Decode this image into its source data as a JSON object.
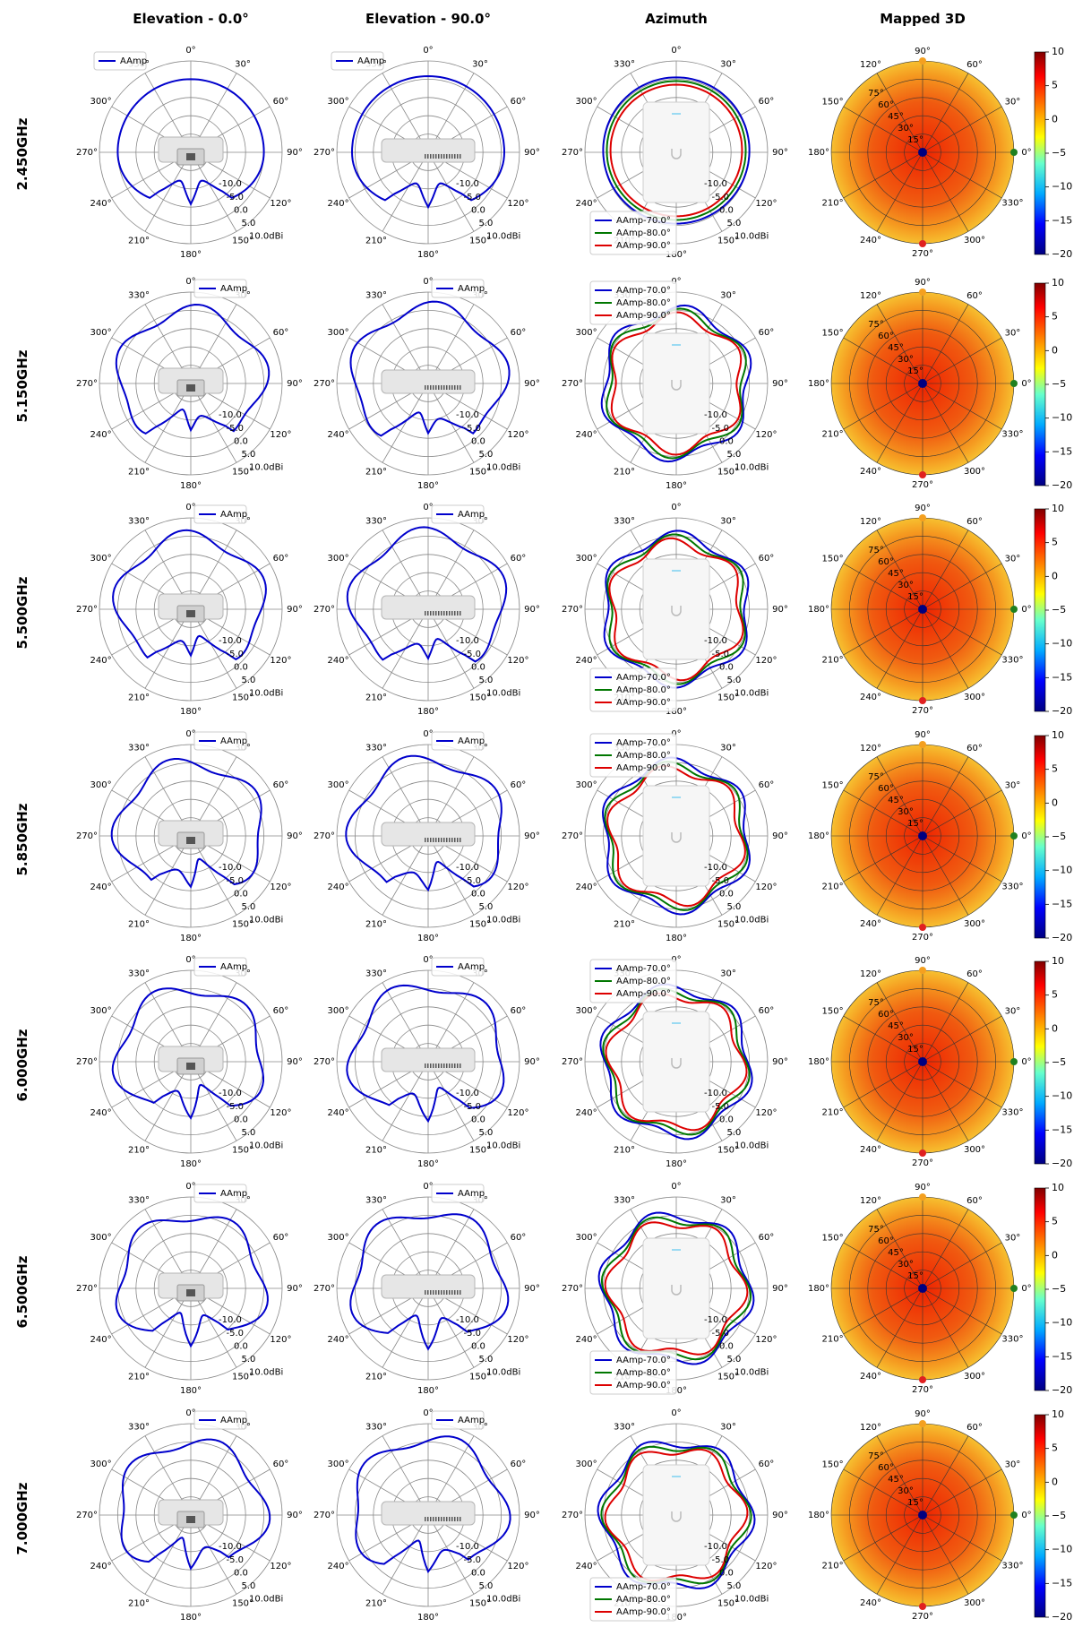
{
  "columns": [
    "Elevation - 0.0°",
    "Elevation - 90.0°",
    "Azimuth",
    "Mapped 3D"
  ],
  "rows": [
    "2.450GHz",
    "5.150GHz",
    "5.500GHz",
    "5.850GHz",
    "6.000GHz",
    "6.500GHz",
    "7.000GHz"
  ],
  "legends": {
    "elevation": [
      "AAmp"
    ],
    "azimuth": [
      "AAmp-70.0°",
      "AAmp-80.0°",
      "AAmp-90.0°"
    ]
  },
  "colors": {
    "aamp": "#0000cc",
    "az70": "#0000cc",
    "az80": "#007700",
    "az90": "#dd0000",
    "grid": "#888888",
    "marker_top": "#f4a020",
    "marker_right": "#208020",
    "marker_bottom": "#e02020",
    "marker_center": "#000080"
  },
  "icons": {
    "elevation_0": "ap-front-device-icon",
    "elevation_90": "ap-side-device-icon",
    "azimuth": "ap-top-device-icon"
  },
  "polar_labels": {
    "elevation_angles": [
      "0°",
      "330°",
      "300°",
      "270°",
      "240°",
      "210°",
      "180°",
      "150°",
      "120°",
      "90°",
      "60°",
      "30°"
    ],
    "azimuth_angles": [
      "90°",
      "60°",
      "30°",
      "0°",
      "330°",
      "300°",
      "270°",
      "240°",
      "210°",
      "180°",
      "150°",
      "120°"
    ],
    "radial_ticks": [
      "-10.0",
      "-5.0",
      "0.0",
      "5.0",
      "10.0dBi"
    ],
    "mapped_ticks": [
      "15°",
      "30°",
      "45°",
      "60°",
      "75°"
    ]
  },
  "colorbar": {
    "ticks": [
      "10",
      "5",
      "0",
      "−5",
      "−10",
      "−15",
      "−20"
    ],
    "range": [
      -20,
      10
    ]
  },
  "chart_data": [
    {
      "type": "polar",
      "frequency": "2.450GHz",
      "view": "Elevation - 0.0°",
      "rlim": [
        -20,
        10
      ],
      "series": [
        {
          "name": "AAmp",
          "angles_deg": [
            0,
            30,
            60,
            90,
            120,
            150,
            165,
            180,
            195,
            210,
            240,
            270,
            300,
            330
          ],
          "values_dbi": [
            4,
            4,
            3,
            2,
            -4,
            -10,
            -6,
            -14,
            -6,
            -10,
            -4,
            2,
            3,
            4
          ]
        }
      ]
    },
    {
      "type": "polar",
      "frequency": "2.450GHz",
      "view": "Elevation - 90.0°",
      "rlim": [
        -20,
        10
      ],
      "series": [
        {
          "name": "AAmp",
          "angles_deg": [
            0,
            30,
            60,
            90,
            120,
            150,
            165,
            180,
            195,
            210,
            240,
            270,
            300,
            330
          ],
          "values_dbi": [
            5,
            6,
            6,
            4,
            -4,
            -8,
            -5,
            -12,
            -5,
            -8,
            -4,
            4,
            6,
            6
          ]
        }
      ]
    },
    {
      "type": "polar",
      "frequency": "2.450GHz",
      "view": "Azimuth",
      "rlim": [
        -20,
        10
      ],
      "series": [
        {
          "name": "AAmp-70.0°",
          "angles_deg": [
            0,
            90,
            180,
            270
          ],
          "values_dbi": [
            4,
            4,
            4,
            4
          ]
        },
        {
          "name": "AAmp-80.0°",
          "angles_deg": [
            0,
            90,
            180,
            270
          ],
          "values_dbi": [
            3,
            3,
            3,
            3
          ]
        },
        {
          "name": "AAmp-90.0°",
          "angles_deg": [
            0,
            90,
            180,
            270
          ],
          "values_dbi": [
            2,
            2,
            2,
            2
          ]
        }
      ]
    },
    {
      "type": "polar",
      "frequency": "5.150GHz",
      "view": "Elevation - 0.0°",
      "rlim": [
        -20,
        10
      ],
      "series": [
        {
          "name": "AAmp",
          "angles_deg": [
            0,
            90,
            180,
            270
          ],
          "values_dbi": [
            4,
            0,
            -15,
            0
          ]
        }
      ]
    },
    {
      "type": "polar",
      "frequency": "5.150GHz",
      "view": "Elevation - 90.0°",
      "rlim": [
        -20,
        10
      ],
      "series": [
        {
          "name": "AAmp",
          "angles_deg": [
            0,
            90,
            180,
            270
          ],
          "values_dbi": [
            4,
            1,
            -15,
            1
          ]
        }
      ]
    },
    {
      "type": "polar",
      "frequency": "5.150GHz",
      "view": "Azimuth",
      "rlim": [
        -20,
        10
      ],
      "series": [
        {
          "name": "AAmp-70.0°",
          "angles_deg": [
            0,
            90,
            180,
            270
          ],
          "values_dbi": [
            2,
            1,
            2,
            1
          ]
        },
        {
          "name": "AAmp-80.0°",
          "angles_deg": [
            0,
            90,
            180,
            270
          ],
          "values_dbi": [
            1,
            0,
            1,
            0
          ]
        },
        {
          "name": "AAmp-90.0°",
          "angles_deg": [
            0,
            90,
            180,
            270
          ],
          "values_dbi": [
            0,
            -1,
            0,
            -1
          ]
        }
      ]
    },
    {
      "type": "polar",
      "frequency": "5.500GHz",
      "view": "Elevation - 0.0°",
      "rlim": [
        -20,
        10
      ],
      "series": [
        {
          "name": "AAmp",
          "angles_deg": [
            0,
            90,
            180,
            270
          ],
          "values_dbi": [
            4,
            0,
            -15,
            0
          ]
        }
      ]
    },
    {
      "type": "polar",
      "frequency": "5.500GHz",
      "view": "Elevation - 90.0°",
      "rlim": [
        -20,
        10
      ],
      "series": [
        {
          "name": "AAmp",
          "angles_deg": [
            0,
            90,
            180,
            270
          ],
          "values_dbi": [
            3,
            1,
            -15,
            1
          ]
        }
      ]
    },
    {
      "type": "polar",
      "frequency": "5.500GHz",
      "view": "Azimuth",
      "rlim": [
        -20,
        10
      ],
      "series": [
        {
          "name": "AAmp-70.0°",
          "angles_deg": [
            0,
            90,
            180,
            270
          ],
          "values_dbi": [
            2,
            2,
            2,
            2
          ]
        },
        {
          "name": "AAmp-80.0°",
          "angles_deg": [
            0,
            90,
            180,
            270
          ],
          "values_dbi": [
            1,
            1,
            1,
            1
          ]
        },
        {
          "name": "AAmp-90.0°",
          "angles_deg": [
            0,
            90,
            180,
            270
          ],
          "values_dbi": [
            0,
            0,
            0,
            0
          ]
        }
      ]
    },
    {
      "type": "polar",
      "frequency": "5.850GHz",
      "view": "Elevation - 0.0°",
      "rlim": [
        -20,
        10
      ],
      "series": [
        {
          "name": "AAmp",
          "angles_deg": [
            0,
            90,
            180,
            270
          ],
          "values_dbi": [
            4,
            0,
            -15,
            0
          ]
        }
      ]
    },
    {
      "type": "polar",
      "frequency": "5.850GHz",
      "view": "Elevation - 90.0°",
      "rlim": [
        -20,
        10
      ],
      "series": [
        {
          "name": "AAmp",
          "angles_deg": [
            0,
            90,
            180,
            270
          ],
          "values_dbi": [
            3,
            1,
            -15,
            1
          ]
        }
      ]
    },
    {
      "type": "polar",
      "frequency": "5.850GHz",
      "view": "Azimuth",
      "rlim": [
        -20,
        10
      ],
      "series": [
        {
          "name": "AAmp-70.0°",
          "angles_deg": [
            0,
            90,
            180,
            270
          ],
          "values_dbi": [
            3,
            2,
            3,
            2
          ]
        },
        {
          "name": "AAmp-80.0°",
          "angles_deg": [
            0,
            90,
            180,
            270
          ],
          "values_dbi": [
            2,
            1,
            2,
            1
          ]
        },
        {
          "name": "AAmp-90.0°",
          "angles_deg": [
            0,
            90,
            180,
            270
          ],
          "values_dbi": [
            1,
            0,
            1,
            0
          ]
        }
      ]
    },
    {
      "type": "polar",
      "frequency": "6.000GHz",
      "view": "Elevation - 0.0°",
      "rlim": [
        -20,
        10
      ],
      "series": [
        {
          "name": "AAmp",
          "angles_deg": [
            0,
            90,
            180,
            270
          ],
          "values_dbi": [
            5,
            2,
            -14,
            2
          ]
        }
      ]
    },
    {
      "type": "polar",
      "frequency": "6.000GHz",
      "view": "Elevation - 90.0°",
      "rlim": [
        -20,
        10
      ],
      "series": [
        {
          "name": "AAmp",
          "angles_deg": [
            0,
            90,
            180,
            270
          ],
          "values_dbi": [
            4,
            1,
            -15,
            1
          ]
        }
      ]
    },
    {
      "type": "polar",
      "frequency": "6.000GHz",
      "view": "Azimuth",
      "rlim": [
        -20,
        10
      ],
      "series": [
        {
          "name": "AAmp-70.0°",
          "angles_deg": [
            0,
            90,
            180,
            270
          ],
          "values_dbi": [
            3,
            3,
            3,
            3
          ]
        },
        {
          "name": "AAmp-80.0°",
          "angles_deg": [
            0,
            90,
            180,
            270
          ],
          "values_dbi": [
            2,
            2,
            2,
            2
          ]
        },
        {
          "name": "AAmp-90.0°",
          "angles_deg": [
            0,
            90,
            180,
            270
          ],
          "values_dbi": [
            1,
            1,
            1,
            1
          ]
        }
      ]
    },
    {
      "type": "polar",
      "frequency": "6.500GHz",
      "view": "Elevation - 0.0°",
      "rlim": [
        -20,
        10
      ],
      "series": [
        {
          "name": "AAmp",
          "angles_deg": [
            0,
            90,
            180,
            270
          ],
          "values_dbi": [
            5,
            2,
            -14,
            2
          ]
        }
      ]
    },
    {
      "type": "polar",
      "frequency": "6.500GHz",
      "view": "Elevation - 90.0°",
      "rlim": [
        -20,
        10
      ],
      "series": [
        {
          "name": "AAmp",
          "angles_deg": [
            0,
            90,
            180,
            270
          ],
          "values_dbi": [
            4,
            1,
            -15,
            1
          ]
        }
      ]
    },
    {
      "type": "polar",
      "frequency": "6.500GHz",
      "view": "Azimuth",
      "rlim": [
        -20,
        10
      ],
      "series": [
        {
          "name": "AAmp-70.0°",
          "angles_deg": [
            0,
            90,
            180,
            270
          ],
          "values_dbi": [
            4,
            3,
            4,
            3
          ]
        },
        {
          "name": "AAmp-80.0°",
          "angles_deg": [
            0,
            90,
            180,
            270
          ],
          "values_dbi": [
            4,
            3,
            4,
            3
          ]
        },
        {
          "name": "AAmp-90.0°",
          "angles_deg": [
            0,
            90,
            180,
            270
          ],
          "values_dbi": [
            2,
            1,
            2,
            1
          ]
        }
      ]
    },
    {
      "type": "polar",
      "frequency": "7.000GHz",
      "view": "Elevation - 0.0°",
      "rlim": [
        -20,
        10
      ],
      "series": [
        {
          "name": "AAmp",
          "angles_deg": [
            0,
            90,
            180,
            270
          ],
          "values_dbi": [
            5,
            3,
            -14,
            3
          ]
        }
      ]
    },
    {
      "type": "polar",
      "frequency": "7.000GHz",
      "view": "Elevation - 90.0°",
      "rlim": [
        -20,
        10
      ],
      "series": [
        {
          "name": "AAmp",
          "angles_deg": [
            0,
            90,
            180,
            270
          ],
          "values_dbi": [
            4,
            2,
            -15,
            2
          ]
        }
      ]
    },
    {
      "type": "polar",
      "frequency": "7.000GHz",
      "view": "Azimuth",
      "rlim": [
        -20,
        10
      ],
      "series": [
        {
          "name": "AAmp-70.0°",
          "angles_deg": [
            0,
            90,
            180,
            270
          ],
          "values_dbi": [
            4,
            3,
            4,
            3
          ]
        },
        {
          "name": "AAmp-80.0°",
          "angles_deg": [
            0,
            90,
            180,
            270
          ],
          "values_dbi": [
            4,
            3,
            4,
            3
          ]
        },
        {
          "name": "AAmp-90.0°",
          "angles_deg": [
            0,
            90,
            180,
            270
          ],
          "values_dbi": [
            2,
            1,
            2,
            1
          ]
        }
      ]
    },
    {
      "type": "heatmap",
      "view": "Mapped 3D",
      "frequencies": [
        "2.450GHz",
        "5.150GHz",
        "5.500GHz",
        "5.850GHz",
        "6.000GHz",
        "6.500GHz",
        "7.000GHz"
      ],
      "colorbar_range": [
        -20,
        10
      ],
      "elevation_rings_deg": [
        15,
        30,
        45,
        60,
        75
      ]
    }
  ]
}
